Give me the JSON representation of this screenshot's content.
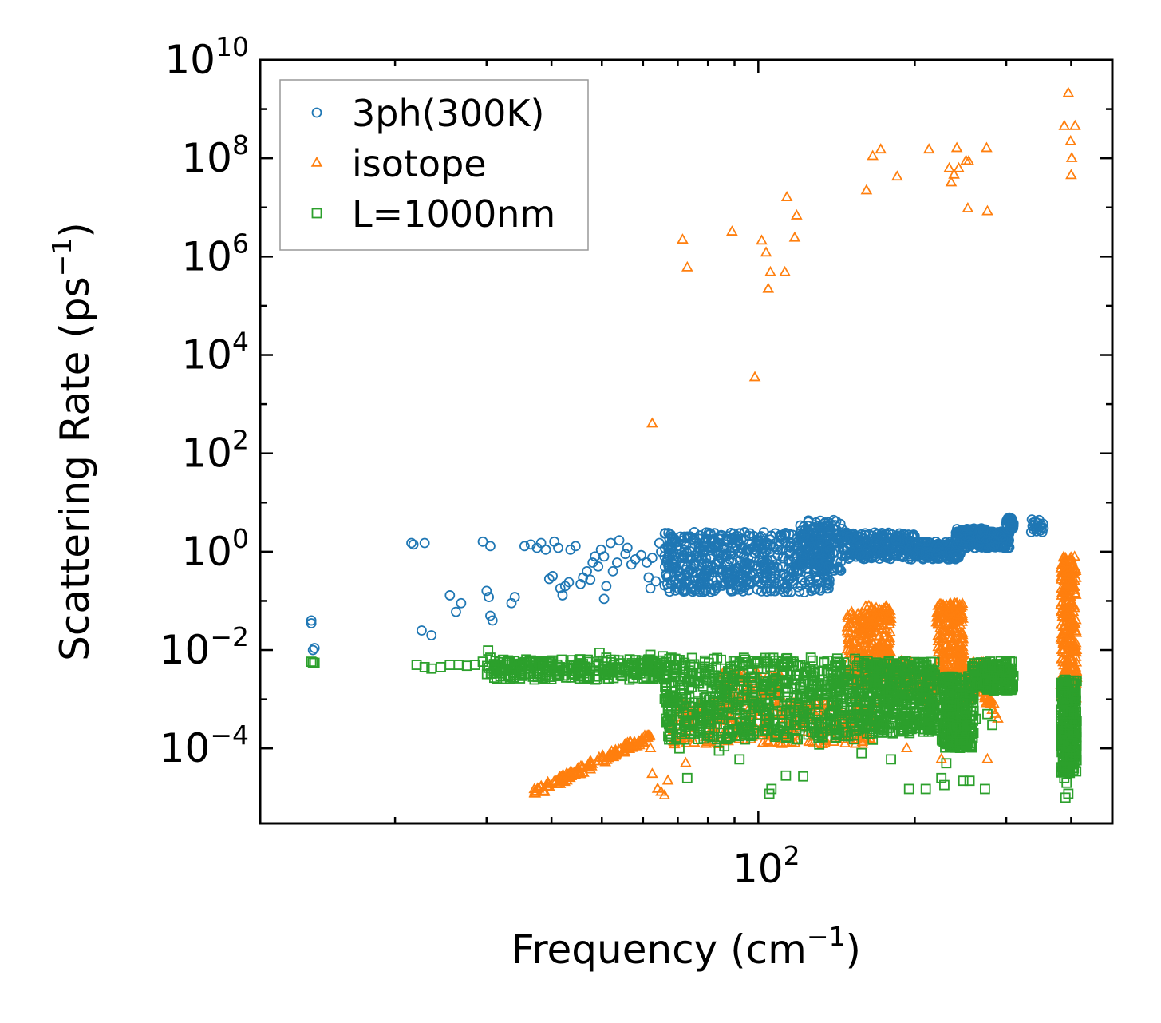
{
  "chart_data": {
    "type": "scatter",
    "xscale": "log",
    "yscale": "log",
    "xlim": [
      11,
      480
    ],
    "ylim": [
      3e-06,
      10000000000.0
    ],
    "xlabel_main": "Frequency (cm",
    "xlabel_exp": "−1",
    "xlabel_close": ")",
    "ylabel_main": "Scattering Rate (ps",
    "ylabel_exp": "−1",
    "ylabel_close": ")",
    "x_ticks": [
      {
        "value": 100,
        "base": "10",
        "exp": "2"
      }
    ],
    "y_ticks": [
      {
        "value": 10000000000.0,
        "base": "10",
        "exp": "10"
      },
      {
        "value": 100000000.0,
        "base": "10",
        "exp": "8"
      },
      {
        "value": 1000000.0,
        "base": "10",
        "exp": "6"
      },
      {
        "value": 10000.0,
        "base": "10",
        "exp": "4"
      },
      {
        "value": 100.0,
        "base": "10",
        "exp": "2"
      },
      {
        "value": 1,
        "base": "10",
        "exp": "0"
      },
      {
        "value": 0.01,
        "base": "10",
        "exp": "−2"
      },
      {
        "value": 0.0001,
        "base": "10",
        "exp": "−4"
      }
    ],
    "legend": {
      "location": "upper-left"
    },
    "series": [
      {
        "name": "3ph(300K)",
        "marker": "circle",
        "color": "#1f77b4",
        "points": [
          [
            13.8,
            0.04
          ],
          [
            13.8,
            0.035
          ],
          [
            13.9,
            0.01
          ],
          [
            14.0,
            0.011
          ],
          [
            22.5,
            0.025
          ],
          [
            23.5,
            0.02
          ],
          [
            21.5,
            1.5
          ],
          [
            21.7,
            1.4
          ],
          [
            22.8,
            1.5
          ],
          [
            25.5,
            0.13
          ],
          [
            26.2,
            0.06
          ],
          [
            26.8,
            0.09
          ],
          [
            29.5,
            1.6
          ],
          [
            30.5,
            1.3
          ],
          [
            30.0,
            0.16
          ],
          [
            30.3,
            0.12
          ],
          [
            30.5,
            0.05
          ],
          [
            30.8,
            0.04
          ],
          [
            33.5,
            0.09
          ],
          [
            34.0,
            0.12
          ],
          [
            35.5,
            1.3
          ],
          [
            36.5,
            1.4
          ],
          [
            37.5,
            1.2
          ],
          [
            38.2,
            1.5
          ],
          [
            39.0,
            1.1
          ],
          [
            39.6,
            0.28
          ],
          [
            40.2,
            0.32
          ],
          [
            40.5,
            1.6
          ],
          [
            41.2,
            1.2
          ],
          [
            41.6,
            0.18
          ],
          [
            42.0,
            0.13
          ],
          [
            42.5,
            0.2
          ],
          [
            43.2,
            0.24
          ],
          [
            43.5,
            1.1
          ],
          [
            44.5,
            1.3
          ],
          [
            45.5,
            0.22
          ],
          [
            46.0,
            0.3
          ],
          [
            46.8,
            0.4
          ],
          [
            47.5,
            0.27
          ],
          [
            48.0,
            0.6
          ],
          [
            48.5,
            0.8
          ],
          [
            49.2,
            0.5
          ],
          [
            49.8,
            1.1
          ],
          [
            50.5,
            0.8
          ],
          [
            50.5,
            0.11
          ],
          [
            51.0,
            0.2
          ],
          [
            52.0,
            1.5
          ],
          [
            52.5,
            0.4
          ],
          [
            53.5,
            0.6
          ],
          [
            54.0,
            1.7
          ],
          [
            55.5,
            0.9
          ],
          [
            56.0,
            1.2
          ],
          [
            57.0,
            0.55
          ],
          [
            58.0,
            0.7
          ],
          [
            59.5,
            0.85
          ],
          [
            61.0,
            0.6
          ],
          [
            62.5,
            0.75
          ],
          [
            61.5,
            0.3
          ],
          [
            62.0,
            0.18
          ],
          [
            63.5,
            0.25
          ],
          [
            64.5,
            1.5
          ],
          [
            65.0,
            1.0
          ],
          [
            66.0,
            0.8
          ],
          [
            335,
            2.5
          ],
          [
            336,
            4.5
          ],
          [
            337,
            3.3
          ],
          [
            338,
            3.9
          ],
          [
            339,
            2.8
          ],
          [
            340,
            3.6
          ],
          [
            341,
            4.1
          ],
          [
            342,
            3.0
          ],
          [
            343,
            2.6
          ],
          [
            344,
            3.4
          ],
          [
            345,
            3.8
          ],
          [
            346,
            2.9
          ],
          [
            347,
            4.4
          ],
          [
            348,
            3.2
          ],
          [
            349,
            2.7
          ],
          [
            350,
            3.5
          ],
          [
            351,
            3.1
          ],
          [
            352,
            2.5
          ],
          [
            353,
            3.7
          ],
          [
            354,
            3.0
          ]
        ],
        "bands": [
          {
            "x": [
              66,
              138
            ],
            "ymin": 0.15,
            "ymax": 2.5,
            "n": 620
          },
          {
            "x": [
              120,
              145
            ],
            "ymin": 0.4,
            "ymax": 4.5,
            "n": 160
          },
          {
            "x": [
              145,
              200
            ],
            "ymin": 0.7,
            "ymax": 2.5,
            "n": 260
          },
          {
            "x": [
              200,
              245
            ],
            "ymin": 0.7,
            "ymax": 1.6,
            "n": 200
          },
          {
            "x": [
              240,
              275
            ],
            "ymin": 1.2,
            "ymax": 3.0,
            "n": 180
          },
          {
            "x": [
              265,
              305
            ],
            "ymin": 1.2,
            "ymax": 2.6,
            "n": 200
          },
          {
            "x": [
              300,
              310
            ],
            "ymin": 3.0,
            "ymax": 5.0,
            "n": 40
          }
        ]
      },
      {
        "name": "isotope",
        "marker": "triangle",
        "color": "#ff7f0e",
        "points": [
          [
            62.5,
            400
          ],
          [
            98.5,
            3500
          ],
          [
            71.5,
            2200000.0
          ],
          [
            73.0,
            600000.0
          ],
          [
            89.0,
            3200000.0
          ],
          [
            101.5,
            2100000.0
          ],
          [
            103.5,
            1200000.0
          ],
          [
            104.5,
            220000.0
          ],
          [
            105.5,
            480000.0
          ],
          [
            112.5,
            480000.0
          ],
          [
            113.5,
            16000000.0
          ],
          [
            117.5,
            2400000.0
          ],
          [
            118.5,
            6800000.0
          ],
          [
            161.5,
            22000000.0
          ],
          [
            166.0,
            110000000.0
          ],
          [
            172.0,
            150000000.0
          ],
          [
            185.0,
            42000000.0
          ],
          [
            213.0,
            150000000.0
          ],
          [
            233.0,
            62000000.0
          ],
          [
            235.0,
            32000000.0
          ],
          [
            238.0,
            46000000.0
          ],
          [
            241.0,
            160000000.0
          ],
          [
            243.0,
            62000000.0
          ],
          [
            251.0,
            88000000.0
          ],
          [
            254.0,
            86000000.0
          ],
          [
            253.0,
            9500000.0
          ],
          [
            275.0,
            160000000.0
          ],
          [
            276.0,
            8300000.0
          ],
          [
            395.0,
            2100000000.0
          ],
          [
            388.0,
            450000000.0
          ],
          [
            407.0,
            450000000.0
          ],
          [
            399.0,
            220000000.0
          ],
          [
            401.0,
            100000000.0
          ],
          [
            400.0,
            45000000.0
          ],
          [
            62.0,
            0.0001
          ],
          [
            62.5,
            3e-05
          ],
          [
            64.0,
            1.5e-05
          ],
          [
            65.0,
            1.3e-05
          ],
          [
            66.0,
            1.1e-05
          ],
          [
            67.0,
            2.2e-05
          ],
          [
            68.0,
            0.0003
          ],
          [
            69.0,
            0.00012
          ],
          [
            71.0,
            0.00015
          ],
          [
            72.5,
            5e-05
          ],
          [
            150.0,
            0.004
          ],
          [
            175.0,
            0.002
          ],
          [
            193.0,
            0.0001
          ],
          [
            215.0,
            0.003
          ],
          [
            225.0,
            6e-05
          ],
          [
            282.0,
            0.0006
          ],
          [
            284.0,
            0.0008
          ],
          [
            286.0,
            0.0005
          ],
          [
            289.0,
            0.0004
          ],
          [
            276.0,
            6e-05
          ]
        ],
        "bands": [
          {
            "x": [
              37,
              62
            ],
            "ymin": 1.2e-05,
            "ymax": 0.00018,
            "n": 140,
            "trend": "rise"
          },
          {
            "x": [
              68,
              170
            ],
            "ymin": 0.00012,
            "ymax": 0.001,
            "n": 300
          },
          {
            "x": [
              85,
              110
            ],
            "ymin": 0.0008,
            "ymax": 0.004,
            "n": 80
          },
          {
            "x": [
              148,
              160
            ],
            "ymin": 0.002,
            "ymax": 0.06,
            "n": 120
          },
          {
            "x": [
              160,
              180
            ],
            "ymin": 0.003,
            "ymax": 0.08,
            "n": 200
          },
          {
            "x": [
              180,
              200
            ],
            "ymin": 0.0015,
            "ymax": 0.006,
            "n": 80
          },
          {
            "x": [
              205,
              220
            ],
            "ymin": 0.0008,
            "ymax": 0.004,
            "n": 60
          },
          {
            "x": [
              220,
              248
            ],
            "ymin": 0.003,
            "ymax": 0.09,
            "n": 200
          },
          {
            "x": [
              248,
              260
            ],
            "ymin": 0.0008,
            "ymax": 0.006,
            "n": 50
          },
          {
            "x": [
              265,
              280
            ],
            "ymin": 0.0008,
            "ymax": 0.006,
            "n": 70
          },
          {
            "x": [
              382,
              410
            ],
            "ymin": 0.001,
            "ymax": 0.8,
            "n": 260
          }
        ]
      },
      {
        "name": "L=1000nm",
        "marker": "square",
        "color": "#2ca02c",
        "points": [
          [
            13.8,
            0.0058
          ],
          [
            13.9,
            0.0056
          ],
          [
            14.0,
            0.0055
          ],
          [
            22.0,
            0.005
          ],
          [
            22.8,
            0.0045
          ],
          [
            23.5,
            0.0042
          ],
          [
            24.5,
            0.0045
          ],
          [
            25.5,
            0.005
          ],
          [
            26.5,
            0.005
          ],
          [
            27.5,
            0.0048
          ],
          [
            28.5,
            0.005
          ],
          [
            29.5,
            0.0058
          ],
          [
            30.2,
            0.0098
          ],
          [
            30.5,
            0.007
          ],
          [
            31.0,
            0.0052
          ],
          [
            31.2,
            0.006
          ],
          [
            34.0,
            0.0052
          ],
          [
            35.0,
            0.0052
          ],
          [
            36.0,
            0.005
          ],
          [
            37.0,
            0.0048
          ],
          [
            38.5,
            0.0049
          ],
          [
            40.0,
            0.0052
          ],
          [
            41.5,
            0.0045
          ],
          [
            43.0,
            0.0042
          ],
          [
            44.5,
            0.0044
          ],
          [
            46.0,
            0.0052
          ],
          [
            47.5,
            0.0042
          ],
          [
            49.5,
            0.0088
          ],
          [
            51.0,
            0.007
          ],
          [
            52.5,
            0.0035
          ],
          [
            54.5,
            0.0042
          ],
          [
            56.5,
            0.0025
          ],
          [
            58.0,
            0.0038
          ],
          [
            59.5,
            0.0055
          ],
          [
            61.0,
            0.0049
          ],
          [
            62.0,
            0.008
          ],
          [
            63.0,
            0.0028
          ],
          [
            64.5,
            0.0036
          ],
          [
            65.5,
            0.0075
          ],
          [
            66.5,
            0.0018
          ],
          [
            68.0,
            0.0006
          ],
          [
            70.0,
            0.0009
          ],
          [
            72.0,
            0.0003
          ],
          [
            73.0,
            2.5e-05
          ],
          [
            70.5,
            0.0001
          ],
          [
            84.0,
            9e-05
          ],
          [
            86.0,
            0.00011
          ],
          [
            92.0,
            6e-05
          ],
          [
            105.0,
            1.2e-05
          ],
          [
            106.0,
            1.5e-05
          ],
          [
            113.0,
            2.8e-05
          ],
          [
            122.0,
            2.7e-05
          ],
          [
            131.0,
            0.00012
          ],
          [
            158.0,
            8e-05
          ],
          [
            166.0,
            0.00015
          ],
          [
            180.0,
            6e-05
          ],
          [
            195.0,
            1.5e-05
          ],
          [
            210.0,
            1.5e-05
          ],
          [
            225.0,
            2.5e-05
          ],
          [
            228.0,
            1.8e-05
          ],
          [
            230.0,
            5e-05
          ],
          [
            248.0,
            2.2e-05
          ],
          [
            255.0,
            2.2e-05
          ],
          [
            262.0,
            0.0004
          ],
          [
            273.0,
            1.5e-05
          ],
          [
            276.0,
            0.0005
          ],
          [
            282.0,
            0.0003
          ],
          [
            390.0,
            1e-05
          ],
          [
            392.0,
            2e-05
          ],
          [
            388.0,
            2.5e-05
          ],
          [
            395.0,
            1.2e-05
          ]
        ],
        "bands": [
          {
            "x": [
              30,
              66
            ],
            "ymin": 0.0025,
            "ymax": 0.0065,
            "n": 260
          },
          {
            "x": [
              66,
              160
            ],
            "ymin": 0.00015,
            "ymax": 0.007,
            "n": 700
          },
          {
            "x": [
              160,
              220
            ],
            "ymin": 0.0002,
            "ymax": 0.006,
            "n": 420
          },
          {
            "x": [
              225,
              260
            ],
            "ymin": 0.0001,
            "ymax": 0.003,
            "n": 300
          },
          {
            "x": [
              258,
              310
            ],
            "ymin": 0.0015,
            "ymax": 0.006,
            "n": 200
          },
          {
            "x": [
              382,
              410
            ],
            "ymin": 3e-05,
            "ymax": 0.0025,
            "n": 320
          }
        ]
      }
    ]
  }
}
